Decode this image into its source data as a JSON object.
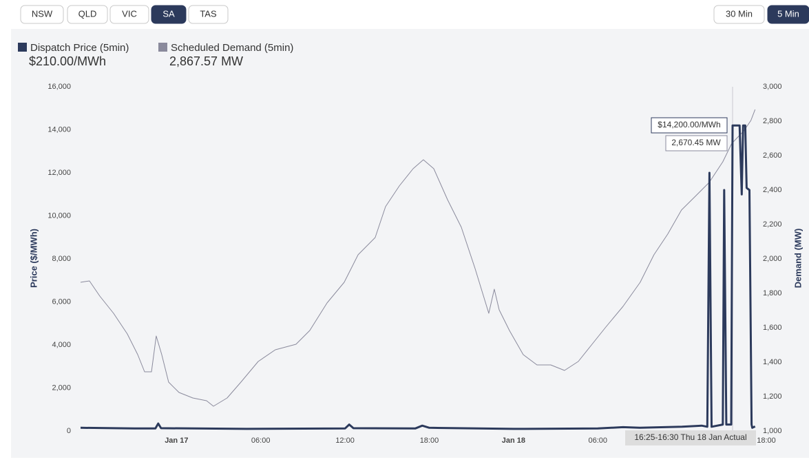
{
  "regions": [
    {
      "label": "NSW",
      "active": false
    },
    {
      "label": "QLD",
      "active": false
    },
    {
      "label": "VIC",
      "active": false
    },
    {
      "label": "SA",
      "active": true
    },
    {
      "label": "TAS",
      "active": false
    }
  ],
  "intervals": [
    {
      "label": "30 Min",
      "active": false
    },
    {
      "label": "5 Min",
      "active": true
    }
  ],
  "chart_data": {
    "type": "line",
    "ylabel": "Price ($/MWh)",
    "y2label": "Demand (MW)",
    "xlim": [
      -6.83,
      42
    ],
    "ylim": [
      0,
      16000
    ],
    "y2lim": [
      1000,
      3000
    ],
    "xticks": [
      {
        "value": 0,
        "label": "Jan 17"
      },
      {
        "value": 6,
        "label": "06:00"
      },
      {
        "value": 12,
        "label": "12:00"
      },
      {
        "value": 18,
        "label": "18:00"
      },
      {
        "value": 24,
        "label": "Jan 18"
      },
      {
        "value": 30,
        "label": "06:00"
      },
      {
        "value": 42,
        "label": "18:00"
      }
    ],
    "yticks": [
      0,
      {
        "value": 2000,
        "label": "2,000"
      },
      {
        "value": 4000,
        "label": "4,000"
      },
      {
        "value": 6000,
        "label": "6,000"
      },
      {
        "value": 8000,
        "label": "8,000"
      },
      {
        "value": 10000,
        "label": "10,000"
      },
      {
        "value": 12000,
        "label": "12,000"
      },
      {
        "value": 14000,
        "label": "14,000"
      },
      {
        "value": 16000,
        "label": "16,000"
      }
    ],
    "y2ticks": [
      {
        "value": 1000,
        "label": "1,000"
      },
      {
        "value": 1200,
        "label": "1,200"
      },
      {
        "value": 1400,
        "label": "1,400"
      },
      {
        "value": 1600,
        "label": "1,600"
      },
      {
        "value": 1800,
        "label": "1,800"
      },
      {
        "value": 2000,
        "label": "2,000"
      },
      {
        "value": 2200,
        "label": "2,200"
      },
      {
        "value": 2400,
        "label": "2,400"
      },
      {
        "value": 2600,
        "label": "2,600"
      },
      {
        "value": 2800,
        "label": "2,800"
      },
      {
        "value": 3000,
        "label": "3,000"
      }
    ],
    "grid": false,
    "series": [
      {
        "name": "Dispatch Price (5min)",
        "current_label": "$210.00/MWh",
        "color": "#2c3a5c",
        "x": [
          -6.83,
          -3,
          -1.5,
          -1.3,
          -1.1,
          5,
          12,
          12.3,
          12.6,
          17,
          17.5,
          18,
          24,
          30,
          31.8,
          33,
          36,
          37.4,
          37.8,
          37.95,
          38.1,
          38.9,
          39.0,
          39.15,
          39.5,
          39.6,
          40.1,
          40.25,
          40.35,
          40.5,
          40.6,
          40.8,
          40.95,
          41.0,
          41.2
        ],
        "values": [
          150,
          120,
          120,
          350,
          130,
          100,
          120,
          300,
          130,
          120,
          250,
          150,
          100,
          120,
          180,
          150,
          200,
          250,
          200,
          12000,
          200,
          300,
          11200,
          300,
          300,
          14200,
          14200,
          11000,
          14200,
          14200,
          11300,
          11200,
          300,
          150,
          210
        ]
      },
      {
        "name": "Scheduled Demand (5min)",
        "current_label": "2,867.57 MW",
        "color": "#8a8a9c",
        "axis": "y2",
        "x": [
          -6.83,
          -6.2,
          -5.46,
          -4.48,
          -3.5,
          -2.76,
          -2.27,
          -1.78,
          -1.44,
          -1.05,
          -0.56,
          0.18,
          1.16,
          2.14,
          2.63,
          3.61,
          4.59,
          5.82,
          7.04,
          8.51,
          9.49,
          10.72,
          11.94,
          12.93,
          14.15,
          14.89,
          15.87,
          16.85,
          17.58,
          18.32,
          19.3,
          20.28,
          21.26,
          22.24,
          22.63,
          22.98,
          23.71,
          24.69,
          25.67,
          26.65,
          27.63,
          28.61,
          29.59,
          30.57,
          31.8,
          33.02,
          34.0,
          34.98,
          35.96,
          36.95,
          37.93,
          38.9,
          39.54,
          40.4,
          40.9,
          41.2
        ],
        "values": [
          1864,
          1872,
          1784,
          1684,
          1564,
          1444,
          1344,
          1344,
          1552,
          1444,
          1284,
          1224,
          1192,
          1176,
          1144,
          1192,
          1284,
          1404,
          1472,
          1504,
          1584,
          1744,
          1864,
          2024,
          2124,
          2304,
          2424,
          2524,
          2576,
          2524,
          2344,
          2184,
          1944,
          1684,
          1824,
          1704,
          1584,
          1444,
          1384,
          1384,
          1352,
          1404,
          1504,
          1604,
          1724,
          1864,
          2024,
          2144,
          2284,
          2364,
          2444,
          2564,
          2670.45,
          2744,
          2804,
          2867.57
        ]
      }
    ],
    "tooltip": {
      "time": "16:25-16:30 Thu 18 Jan Actual",
      "price": "$14,200.00/MWh",
      "demand": "2,670.45 MW"
    }
  }
}
